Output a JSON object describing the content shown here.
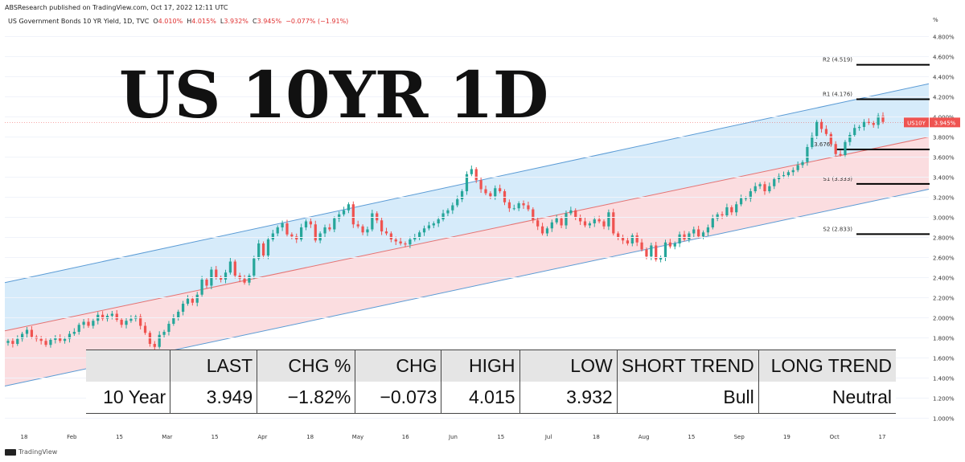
{
  "header": {
    "publisher": "ABSResearch published on TradingView.com, Oct 17, 2022 12:11 UTC",
    "symbol": "US Government Bonds 10 YR Yield, 1D, TVC",
    "open_label": "O",
    "open": "4.010%",
    "high_label": "H",
    "high": "4.015%",
    "low_label": "L",
    "low": "3.932%",
    "close_label": "C",
    "close": "3.945%",
    "change": "−0.077% (−1.91%)"
  },
  "title": "US 10YR 1D",
  "footer": {
    "brand": "TradingView"
  },
  "price_tag": {
    "symbol": "US10Y",
    "value": "3.945%"
  },
  "colors": {
    "up": "#26a69a",
    "down": "#ef5350",
    "upper_band_fill": "#d6ebfa",
    "lower_band_fill": "#fbdde0",
    "channel_line": "#5b9bd5",
    "mid_line": "#e57373",
    "level_line": "#000000",
    "price_tag": "#ef5350"
  },
  "chart_data": {
    "type": "candlestick",
    "yunit": "%",
    "ylim": [
      0.9,
      4.9
    ],
    "y_ticks": [
      "4.800%",
      "4.600%",
      "4.400%",
      "4.200%",
      "4.000%",
      "3.800%",
      "3.600%",
      "3.400%",
      "3.200%",
      "3.000%",
      "2.800%",
      "2.600%",
      "2.400%",
      "2.200%",
      "2.000%",
      "1.800%",
      "1.600%",
      "1.400%",
      "1.200%",
      "1.000%"
    ],
    "x_ticks": [
      "18",
      "Feb",
      "15",
      "Mar",
      "15",
      "Apr",
      "18",
      "May",
      "16",
      "Jun",
      "15",
      "Jul",
      "18",
      "Aug",
      "15",
      "Sep",
      "19",
      "Oct",
      "17"
    ],
    "closes": [
      1.77,
      1.74,
      1.79,
      1.84,
      1.88,
      1.81,
      1.79,
      1.77,
      1.73,
      1.78,
      1.8,
      1.77,
      1.79,
      1.84,
      1.86,
      1.93,
      1.96,
      1.92,
      1.97,
      2.03,
      1.99,
      2.02,
      2.04,
      1.98,
      1.93,
      1.97,
      1.99,
      2.01,
      1.92,
      1.85,
      1.74,
      1.71,
      1.83,
      1.86,
      1.94,
      2.0,
      2.06,
      2.14,
      2.19,
      2.15,
      2.23,
      2.38,
      2.32,
      2.48,
      2.4,
      2.38,
      2.45,
      2.56,
      2.42,
      2.39,
      2.35,
      2.42,
      2.59,
      2.74,
      2.62,
      2.78,
      2.84,
      2.9,
      2.94,
      2.83,
      2.81,
      2.78,
      2.9,
      2.96,
      2.93,
      2.77,
      2.84,
      2.9,
      2.88,
      2.99,
      3.03,
      3.07,
      3.13,
      2.93,
      2.91,
      2.85,
      2.88,
      3.04,
      2.97,
      2.86,
      2.84,
      2.78,
      2.76,
      2.74,
      2.73,
      2.78,
      2.8,
      2.85,
      2.89,
      2.92,
      2.94,
      2.98,
      3.04,
      3.07,
      3.12,
      3.18,
      3.26,
      3.43,
      3.48,
      3.37,
      3.28,
      3.24,
      3.21,
      3.29,
      3.26,
      3.15,
      3.09,
      3.09,
      3.14,
      3.12,
      3.08,
      2.97,
      2.91,
      2.84,
      2.89,
      2.95,
      2.99,
      2.92,
      3.04,
      3.07,
      3.0,
      2.96,
      2.92,
      2.94,
      2.98,
      2.96,
      2.91,
      3.05,
      2.84,
      2.8,
      2.77,
      2.74,
      2.82,
      2.75,
      2.68,
      2.61,
      2.72,
      2.58,
      2.6,
      2.75,
      2.71,
      2.74,
      2.83,
      2.78,
      2.84,
      2.88,
      2.81,
      2.85,
      2.9,
      2.99,
      3.03,
      3.02,
      3.1,
      3.05,
      3.13,
      3.19,
      3.19,
      3.26,
      3.31,
      3.33,
      3.26,
      3.31,
      3.38,
      3.41,
      3.42,
      3.45,
      3.47,
      3.52,
      3.55,
      3.7,
      3.81,
      3.95,
      3.88,
      3.83,
      3.73,
      3.63,
      3.62,
      3.75,
      3.82,
      3.89,
      3.9,
      3.95,
      3.94,
      3.92,
      4.01,
      3.95
    ],
    "channel": {
      "upper": {
        "start": 2.35,
        "end": 4.33
      },
      "middle": {
        "start": 1.87,
        "end": 3.8
      },
      "lower": {
        "start": 1.32,
        "end": 3.28
      }
    },
    "levels": [
      {
        "label": "R2 (4.519)",
        "value": 4.519
      },
      {
        "label": "R1 (4.176)",
        "value": 4.176
      },
      {
        "label": "(3.676)",
        "value": 3.676
      },
      {
        "label": "S1 (3.333)",
        "value": 3.333
      },
      {
        "label": "S2 (2.833)",
        "value": 2.833
      }
    ],
    "last_price": 3.945
  },
  "table": {
    "headers": [
      "",
      "LAST",
      "CHG %",
      "CHG",
      "HIGH",
      "LOW",
      "SHORT TREND",
      "LONG TREND"
    ],
    "row": [
      "10 Year",
      "3.949",
      "−1.82%",
      "−0.073",
      "4.015",
      "3.932",
      "Bull",
      "Neutral"
    ]
  }
}
